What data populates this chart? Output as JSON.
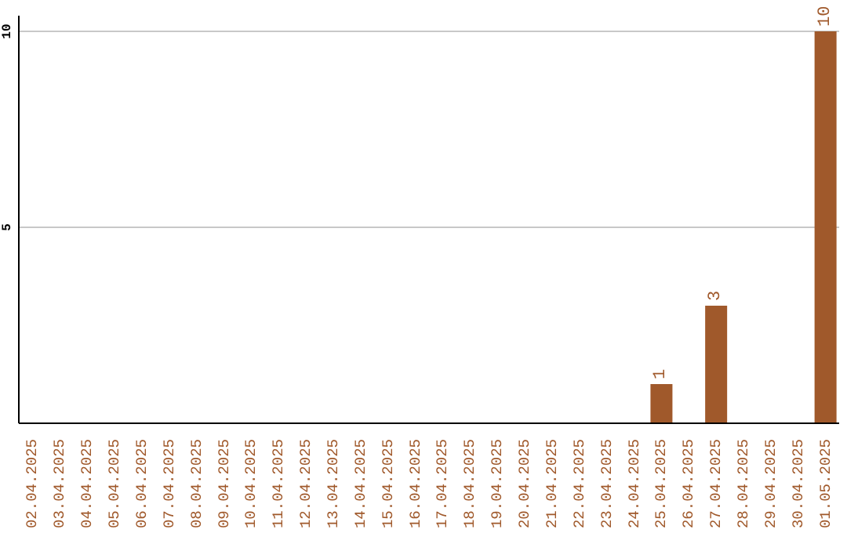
{
  "chart_data": {
    "type": "bar",
    "categories": [
      "02.04.2025",
      "03.04.2025",
      "04.04.2025",
      "05.04.2025",
      "06.04.2025",
      "07.04.2025",
      "08.04.2025",
      "09.04.2025",
      "10.04.2025",
      "11.04.2025",
      "12.04.2025",
      "13.04.2025",
      "14.04.2025",
      "15.04.2025",
      "16.04.2025",
      "17.04.2025",
      "18.04.2025",
      "19.04.2025",
      "20.04.2025",
      "21.04.2025",
      "22.04.2025",
      "23.04.2025",
      "24.04.2025",
      "25.04.2025",
      "26.04.2025",
      "27.04.2025",
      "28.04.2025",
      "29.04.2025",
      "30.04.2025",
      "01.05.2025"
    ],
    "values": [
      0,
      0,
      0,
      0,
      0,
      0,
      0,
      0,
      0,
      0,
      0,
      0,
      0,
      0,
      0,
      0,
      0,
      0,
      0,
      0,
      0,
      0,
      0,
      1,
      0,
      3,
      0,
      0,
      0,
      10
    ],
    "value_labels": [
      null,
      null,
      null,
      null,
      null,
      null,
      null,
      null,
      null,
      null,
      null,
      null,
      null,
      null,
      null,
      null,
      null,
      null,
      null,
      null,
      null,
      null,
      null,
      "1",
      null,
      "3",
      null,
      null,
      null,
      "10"
    ],
    "color": "#a0592b",
    "ylim": [
      0,
      10.4
    ],
    "yticks": [
      5,
      10
    ],
    "grid": "y"
  }
}
